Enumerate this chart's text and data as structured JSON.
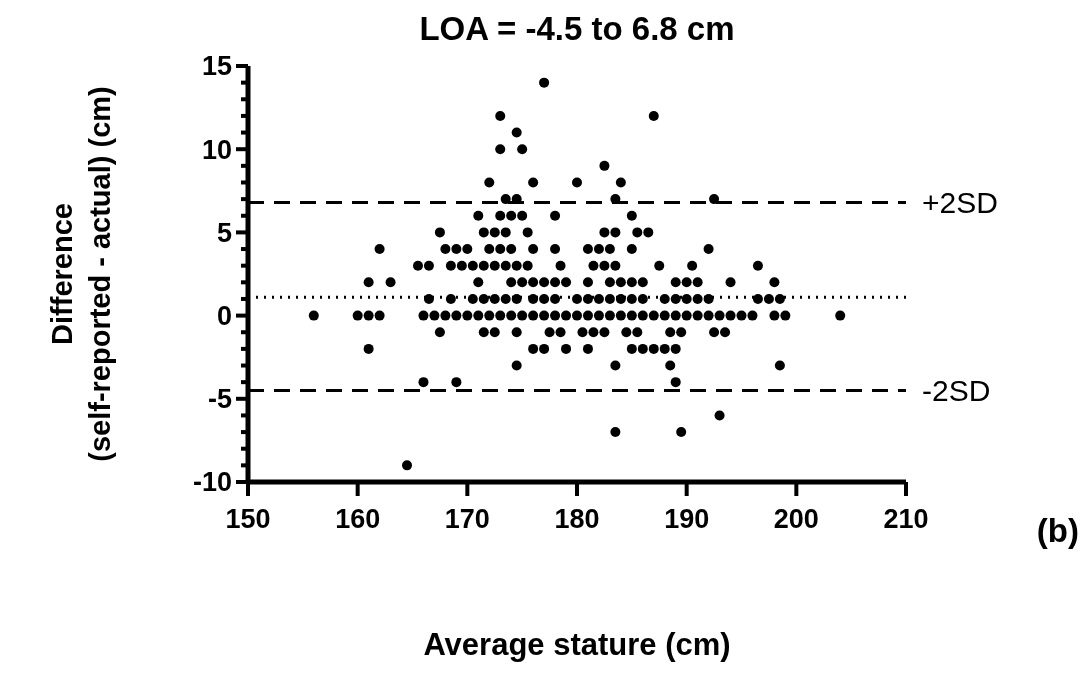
{
  "chart_data": {
    "type": "scatter",
    "title": "LOA = -4.5 to 6.8 cm",
    "xlabel": "Average stature (cm)",
    "ylabel": "Difference\n(self-reported - actual) (cm)",
    "annotations": [
      "(b)"
    ],
    "marker": "circle",
    "xlim": [
      150,
      210
    ],
    "xticks": [
      150,
      160,
      170,
      180,
      190,
      200,
      210
    ],
    "ylim": [
      -10,
      15
    ],
    "yticks": [
      -10,
      {
        "value": -9,
        "label": null
      },
      {
        "value": -8,
        "label": null
      },
      {
        "value": -7,
        "label": null
      },
      {
        "value": -6,
        "label": null
      },
      -5,
      {
        "value": -4,
        "label": null
      },
      {
        "value": -3,
        "label": null
      },
      {
        "value": -2,
        "label": null
      },
      {
        "value": -1,
        "label": null
      },
      0,
      {
        "value": 1,
        "label": null
      },
      {
        "value": 2,
        "label": null
      },
      {
        "value": 3,
        "label": null
      },
      {
        "value": 4,
        "label": null
      },
      5,
      {
        "value": 6,
        "label": null
      },
      {
        "value": 7,
        "label": null
      },
      {
        "value": 8,
        "label": null
      },
      {
        "value": 9,
        "label": null
      },
      10,
      {
        "value": 11,
        "label": null
      },
      {
        "value": 12,
        "label": null
      },
      {
        "value": 13,
        "label": null
      },
      {
        "value": 14,
        "label": null
      },
      15
    ],
    "ref_lines": [
      {
        "axis": "y",
        "value": 6.8,
        "label": "+2SD",
        "line_style": "dashed",
        "color": "#000000"
      },
      {
        "axis": "y",
        "value": 1.1,
        "line_style": "dotted",
        "color": "#000000"
      },
      {
        "axis": "y",
        "value": -4.5,
        "label": "-2SD",
        "line_style": "dashed",
        "color": "#000000"
      }
    ],
    "series": [
      {
        "color": "#000000",
        "x": [
          177,
          173,
          187,
          174.5,
          173,
          175,
          182.5,
          172,
          176,
          180,
          184,
          173.5,
          174.5,
          183.5,
          192.5,
          171,
          173,
          174,
          175,
          178,
          185,
          167.5,
          171.5,
          172.5,
          173.5,
          175.5,
          182.5,
          183.5,
          185.5,
          186.5,
          162,
          168,
          169,
          170,
          172,
          173,
          174,
          176,
          178,
          181,
          182,
          183,
          185,
          192,
          165.5,
          166.5,
          168.5,
          169.5,
          170.5,
          171.5,
          172.5,
          173.5,
          174.5,
          175.5,
          178.5,
          181.5,
          182.5,
          183.5,
          187.5,
          190.5,
          196.5,
          161,
          163,
          171,
          174,
          175,
          176,
          177,
          178,
          179,
          181,
          183,
          184,
          185,
          186,
          189,
          190,
          191,
          194,
          198,
          166.5,
          168.5,
          170.5,
          171.5,
          172.5,
          173.5,
          174.5,
          176,
          177,
          178,
          180,
          181,
          182,
          183,
          184,
          185,
          186,
          188,
          189,
          190,
          191,
          192,
          196.5,
          197.5,
          198.5,
          156,
          160,
          161,
          162,
          166,
          167,
          168,
          169,
          170,
          171,
          172,
          173,
          174,
          175,
          176,
          177,
          178,
          179,
          180,
          181,
          182,
          183,
          184,
          185,
          186,
          187,
          188,
          189,
          190,
          191,
          192,
          193,
          194,
          195,
          196,
          198,
          199,
          204,
          167.5,
          171.5,
          172.5,
          174.5,
          177.5,
          178.5,
          180.5,
          181.5,
          182.5,
          184.5,
          185.5,
          188.5,
          189.5,
          192.5,
          193.5,
          161,
          176,
          177,
          179,
          181,
          185,
          186,
          187,
          188,
          189,
          174.5,
          183.5,
          188.5,
          198.5,
          166,
          169,
          189,
          193,
          183.5,
          189.5,
          164.5
        ],
        "values": [
          14,
          12,
          12,
          11,
          10,
          10,
          9,
          8,
          8,
          8,
          8,
          7,
          7,
          7,
          7,
          6,
          6,
          6,
          6,
          6,
          6,
          5,
          5,
          5,
          5,
          5,
          5,
          5,
          5,
          5,
          4,
          4,
          4,
          4,
          4,
          4,
          4,
          4,
          4,
          4,
          4,
          4,
          4,
          4,
          3,
          3,
          3,
          3,
          3,
          3,
          3,
          3,
          3,
          3,
          3,
          3,
          3,
          3,
          3,
          3,
          3,
          2,
          2,
          2,
          2,
          2,
          2,
          2,
          2,
          2,
          2,
          2,
          2,
          2,
          2,
          2,
          2,
          2,
          2,
          2,
          1,
          1,
          1,
          1,
          1,
          1,
          1,
          1,
          1,
          1,
          1,
          1,
          1,
          1,
          1,
          1,
          1,
          1,
          1,
          1,
          1,
          1,
          1,
          1,
          1,
          0,
          0,
          0,
          0,
          0,
          0,
          0,
          0,
          0,
          0,
          0,
          0,
          0,
          0,
          0,
          0,
          0,
          0,
          0,
          0,
          0,
          0,
          0,
          0,
          0,
          0,
          0,
          0,
          0,
          0,
          0,
          0,
          0,
          0,
          0,
          0,
          0,
          0,
          -1,
          -1,
          -1,
          -1,
          -1,
          -1,
          -1,
          -1,
          -1,
          -1,
          -1,
          -1,
          -1,
          -1,
          -1,
          -2,
          -2,
          -2,
          -2,
          -2,
          -2,
          -2,
          -2,
          -2,
          -2,
          -3,
          -3,
          -3,
          -3,
          -4,
          -4,
          -4,
          -6,
          -7,
          -7,
          -9
        ]
      }
    ]
  }
}
